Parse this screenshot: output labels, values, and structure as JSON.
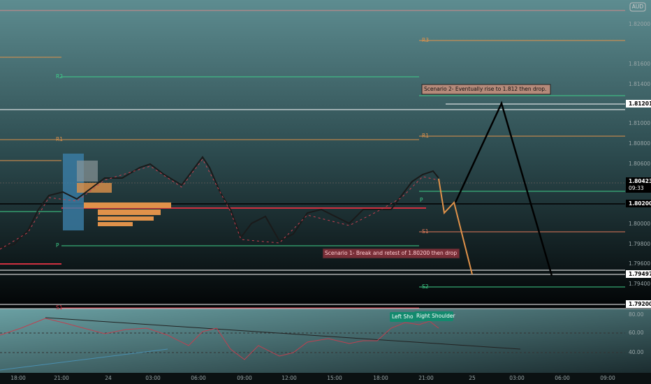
{
  "badge": "AUD",
  "price_axis": {
    "labels": [
      "1.82000",
      "1.81600",
      "1.81400",
      "1.81000",
      "1.80800",
      "1.80600",
      "1.80000",
      "1.79800",
      "1.79600",
      "1.79400"
    ]
  },
  "price_tags": [
    {
      "label": "1.81201"
    },
    {
      "label": "1.80423",
      "sub": "09:33"
    },
    {
      "label": "1.80200"
    },
    {
      "label": "1.79497"
    },
    {
      "label": "1.79200"
    }
  ],
  "pivots": {
    "right": [
      "R3",
      "R1",
      "P",
      "S1",
      "S2"
    ],
    "left": [
      "R2",
      "R1",
      "P",
      "S1"
    ]
  },
  "annotations": [
    "Scenario 2- Eventually rise to 1.812 then drop.",
    "Scenario 1- Break and retest of 1.80200 then drop"
  ],
  "oscillator": {
    "labels": [
      "Left Sho",
      "Right Shoulder"
    ],
    "axis": [
      "80.00",
      "60.00",
      "40.00"
    ]
  },
  "time_axis": {
    "labels": [
      "18:00",
      "21:00",
      "24",
      "03:00",
      "06:00",
      "09:00",
      "12:00",
      "15:00",
      "18:00",
      "21:00",
      "25",
      "03:00",
      "06:00",
      "09:00"
    ]
  }
}
